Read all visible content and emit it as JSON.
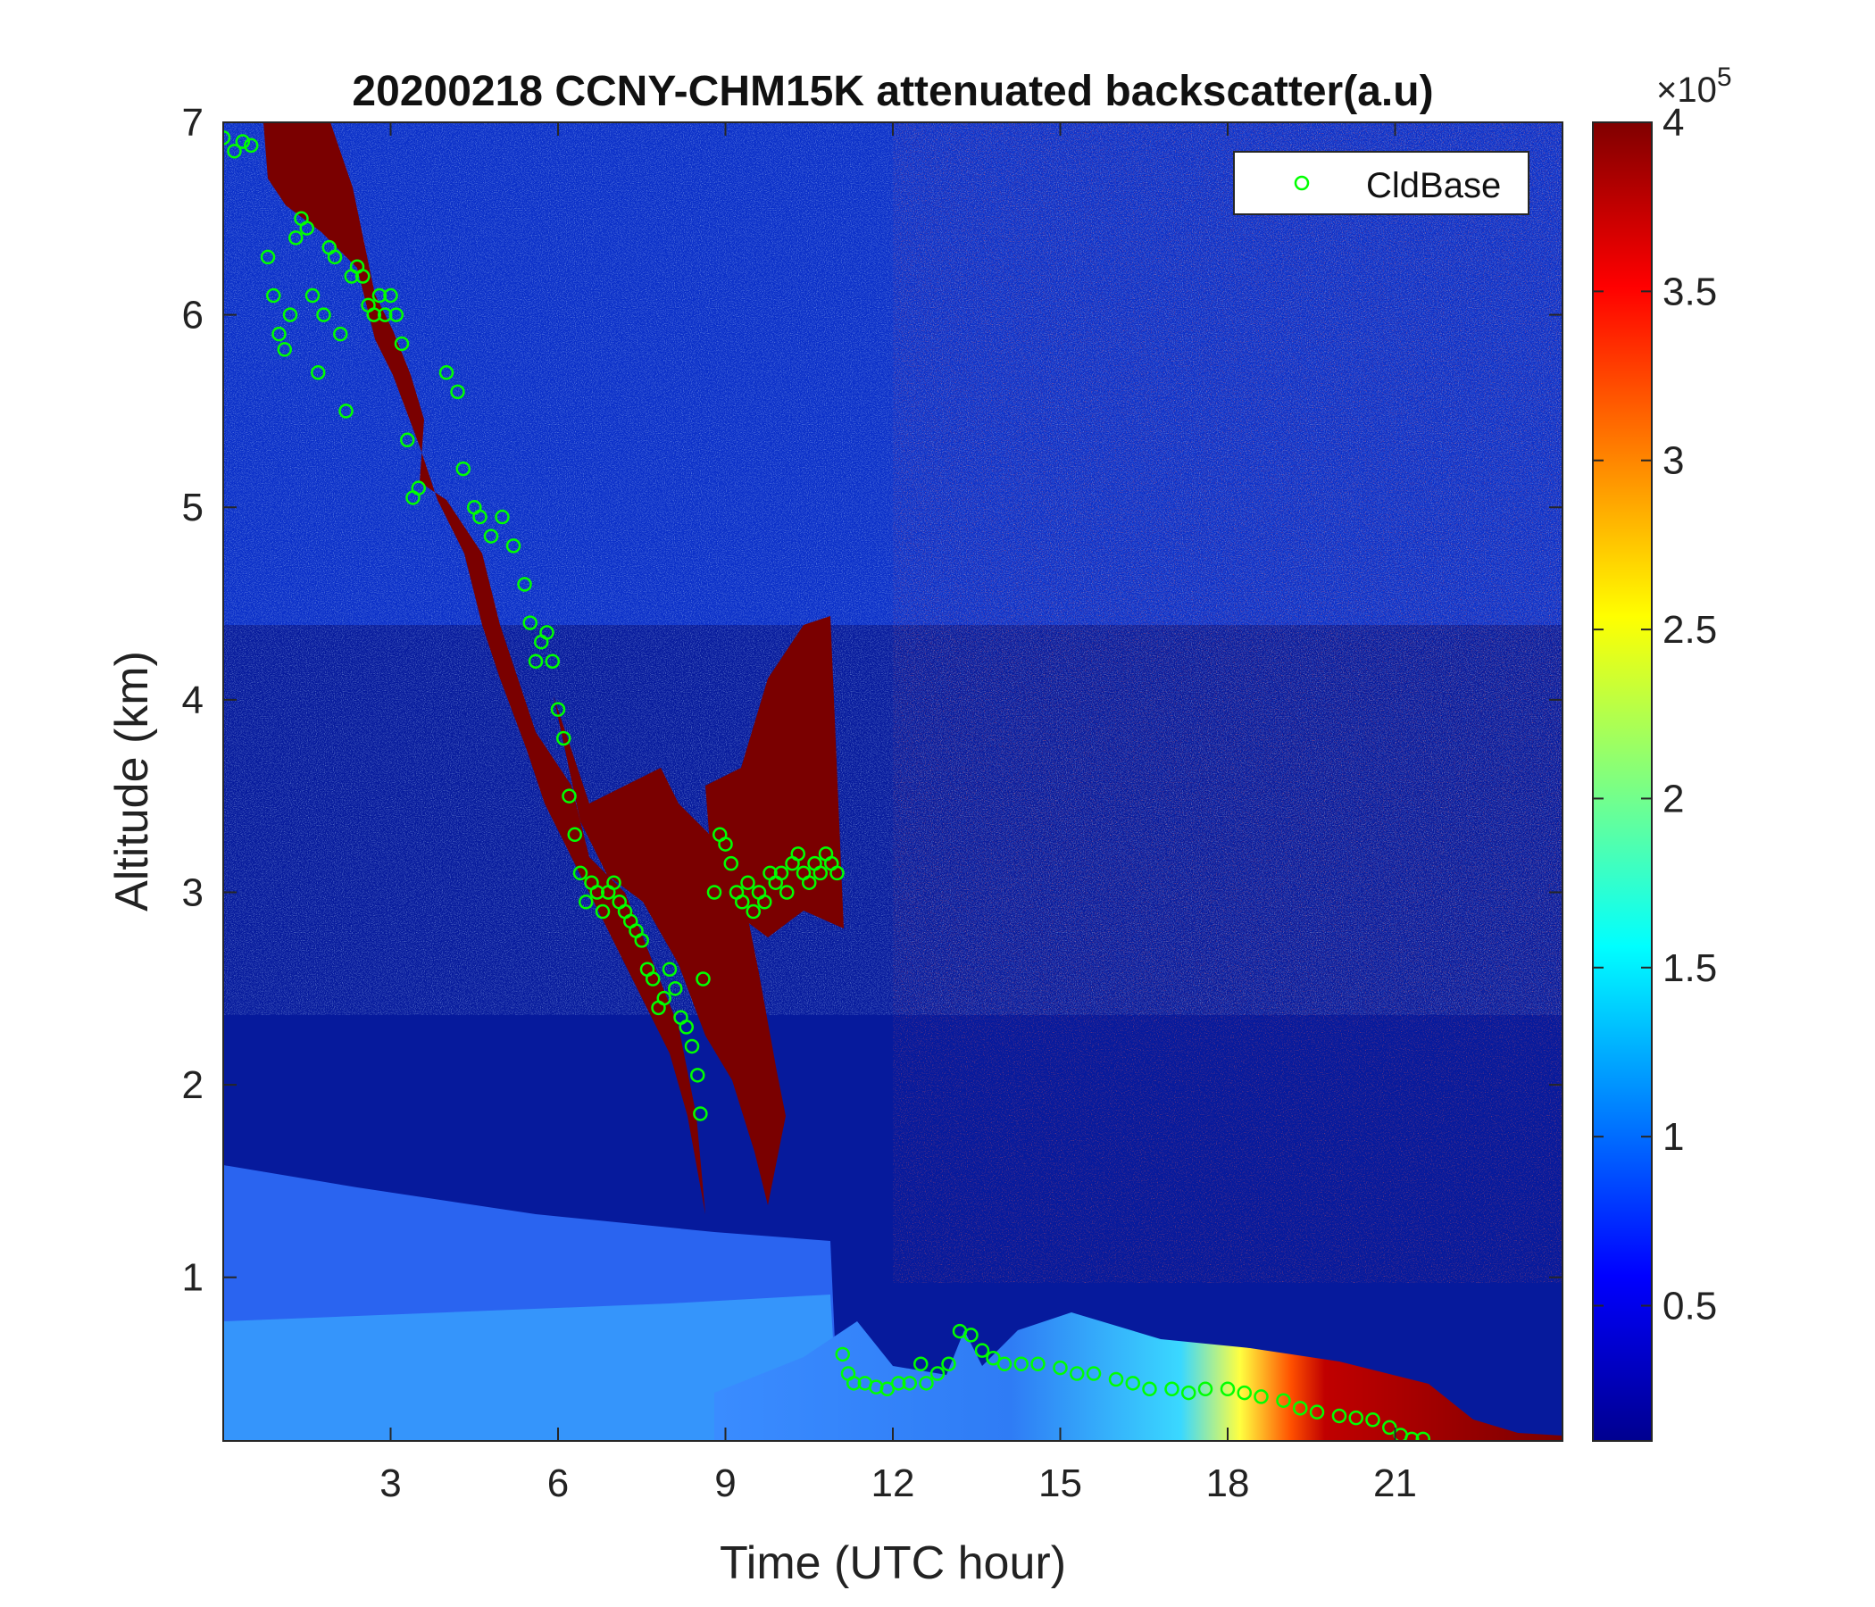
{
  "chart_data": {
    "type": "heatmap",
    "title": "20200218 CCNY-CHM15K attenuated backscatter(a.u)",
    "xlabel": "Time (UTC hour)",
    "ylabel": "Altitude (km)",
    "xlim": [
      0,
      24
    ],
    "ylim": [
      0.15,
      7
    ],
    "x_ticks": [
      3,
      6,
      9,
      12,
      15,
      18,
      21
    ],
    "y_ticks": [
      1,
      2,
      3,
      4,
      5,
      6,
      7
    ],
    "colorbar": {
      "range": [
        10000,
        400000
      ],
      "ticks": [
        0.5,
        1,
        1.5,
        2,
        2.5,
        3,
        3.5,
        4
      ],
      "multiplier_base": "×10",
      "multiplier_exponent": "5",
      "colormap": "jet"
    },
    "legend": {
      "position": "top-right",
      "entries": [
        "CldBase"
      ]
    },
    "series": [
      {
        "name": "CldBase",
        "marker": "open-circle",
        "color": "#00ff00",
        "points": [
          [
            0.0,
            6.92
          ],
          [
            0.2,
            6.85
          ],
          [
            0.35,
            6.9
          ],
          [
            0.5,
            6.88
          ],
          [
            0.8,
            6.3
          ],
          [
            0.9,
            6.1
          ],
          [
            1.0,
            5.9
          ],
          [
            1.1,
            5.82
          ],
          [
            1.2,
            6.0
          ],
          [
            1.3,
            6.4
          ],
          [
            1.4,
            6.5
          ],
          [
            1.5,
            6.45
          ],
          [
            1.6,
            6.1
          ],
          [
            1.7,
            5.7
          ],
          [
            1.8,
            6.0
          ],
          [
            1.9,
            6.35
          ],
          [
            2.0,
            6.3
          ],
          [
            2.1,
            5.9
          ],
          [
            2.2,
            5.5
          ],
          [
            2.3,
            6.2
          ],
          [
            2.4,
            6.25
          ],
          [
            2.5,
            6.2
          ],
          [
            2.6,
            6.05
          ],
          [
            2.7,
            6.0
          ],
          [
            2.8,
            6.1
          ],
          [
            2.9,
            6.0
          ],
          [
            3.0,
            6.1
          ],
          [
            3.1,
            6.0
          ],
          [
            3.2,
            5.85
          ],
          [
            3.3,
            5.35
          ],
          [
            3.4,
            5.05
          ],
          [
            3.5,
            5.1
          ],
          [
            4.0,
            5.7
          ],
          [
            4.2,
            5.6
          ],
          [
            4.3,
            5.2
          ],
          [
            4.5,
            5.0
          ],
          [
            4.6,
            4.95
          ],
          [
            4.8,
            4.85
          ],
          [
            5.0,
            4.95
          ],
          [
            5.2,
            4.8
          ],
          [
            5.4,
            4.6
          ],
          [
            5.5,
            4.4
          ],
          [
            5.6,
            4.2
          ],
          [
            5.7,
            4.3
          ],
          [
            5.8,
            4.35
          ],
          [
            5.9,
            4.2
          ],
          [
            6.0,
            3.95
          ],
          [
            6.1,
            3.8
          ],
          [
            6.2,
            3.5
          ],
          [
            6.3,
            3.3
          ],
          [
            6.4,
            3.1
          ],
          [
            6.5,
            2.95
          ],
          [
            6.6,
            3.05
          ],
          [
            6.7,
            3.0
          ],
          [
            6.8,
            2.9
          ],
          [
            6.9,
            3.0
          ],
          [
            7.0,
            3.05
          ],
          [
            7.1,
            2.95
          ],
          [
            7.2,
            2.9
          ],
          [
            7.3,
            2.85
          ],
          [
            7.4,
            2.8
          ],
          [
            7.5,
            2.75
          ],
          [
            7.6,
            2.6
          ],
          [
            7.7,
            2.55
          ],
          [
            7.8,
            2.4
          ],
          [
            7.9,
            2.45
          ],
          [
            8.0,
            2.6
          ],
          [
            8.1,
            2.5
          ],
          [
            8.2,
            2.35
          ],
          [
            8.3,
            2.3
          ],
          [
            8.4,
            2.2
          ],
          [
            8.5,
            2.05
          ],
          [
            8.55,
            1.85
          ],
          [
            8.6,
            2.55
          ],
          [
            8.8,
            3.0
          ],
          [
            8.9,
            3.3
          ],
          [
            9.0,
            3.25
          ],
          [
            9.1,
            3.15
          ],
          [
            9.2,
            3.0
          ],
          [
            9.3,
            2.95
          ],
          [
            9.4,
            3.05
          ],
          [
            9.5,
            2.9
          ],
          [
            9.6,
            3.0
          ],
          [
            9.7,
            2.95
          ],
          [
            9.8,
            3.1
          ],
          [
            9.9,
            3.05
          ],
          [
            10.0,
            3.1
          ],
          [
            10.1,
            3.0
          ],
          [
            10.2,
            3.15
          ],
          [
            10.3,
            3.2
          ],
          [
            10.4,
            3.1
          ],
          [
            10.5,
            3.05
          ],
          [
            10.6,
            3.15
          ],
          [
            10.7,
            3.1
          ],
          [
            10.8,
            3.2
          ],
          [
            10.9,
            3.15
          ],
          [
            11.0,
            3.1
          ],
          [
            11.1,
            0.6
          ],
          [
            11.2,
            0.5
          ],
          [
            11.3,
            0.45
          ],
          [
            11.5,
            0.45
          ],
          [
            11.7,
            0.43
          ],
          [
            11.9,
            0.42
          ],
          [
            12.1,
            0.45
          ],
          [
            12.3,
            0.45
          ],
          [
            12.5,
            0.55
          ],
          [
            12.6,
            0.45
          ],
          [
            12.8,
            0.5
          ],
          [
            13.0,
            0.55
          ],
          [
            13.2,
            0.72
          ],
          [
            13.4,
            0.7
          ],
          [
            13.6,
            0.62
          ],
          [
            13.8,
            0.58
          ],
          [
            14.0,
            0.55
          ],
          [
            14.3,
            0.55
          ],
          [
            14.6,
            0.55
          ],
          [
            15.0,
            0.53
          ],
          [
            15.3,
            0.5
          ],
          [
            15.6,
            0.5
          ],
          [
            16.0,
            0.47
          ],
          [
            16.3,
            0.45
          ],
          [
            16.6,
            0.42
          ],
          [
            17.0,
            0.42
          ],
          [
            17.3,
            0.4
          ],
          [
            17.6,
            0.42
          ],
          [
            18.0,
            0.42
          ],
          [
            18.3,
            0.4
          ],
          [
            18.6,
            0.38
          ],
          [
            19.0,
            0.36
          ],
          [
            19.3,
            0.32
          ],
          [
            19.6,
            0.3
          ],
          [
            20.0,
            0.28
          ],
          [
            20.3,
            0.27
          ],
          [
            20.6,
            0.26
          ],
          [
            20.9,
            0.22
          ],
          [
            21.1,
            0.18
          ],
          [
            21.3,
            0.16
          ],
          [
            21.5,
            0.16
          ]
        ]
      }
    ]
  }
}
